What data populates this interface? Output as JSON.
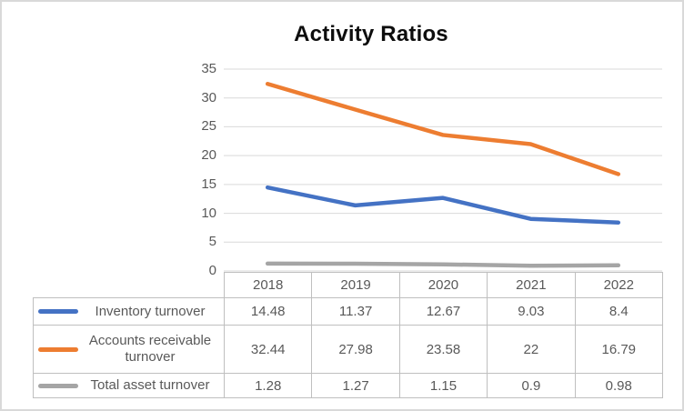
{
  "title": "Activity Ratios",
  "chart_data": {
    "type": "line",
    "title": "Activity Ratios",
    "categories": [
      "2018",
      "2019",
      "2020",
      "2021",
      "2022"
    ],
    "series": [
      {
        "name": "Inventory turnover",
        "color": "#4472C4",
        "values": [
          14.48,
          11.37,
          12.67,
          9.03,
          8.4
        ]
      },
      {
        "name": "Accounts receivable turnover",
        "color": "#ED7D31",
        "values": [
          32.44,
          27.98,
          23.58,
          22,
          16.79
        ]
      },
      {
        "name": "Total asset turnover",
        "color": "#A5A5A5",
        "values": [
          1.28,
          1.27,
          1.15,
          0.9,
          0.98
        ]
      }
    ],
    "yticks": [
      0,
      5,
      10,
      15,
      20,
      25,
      30,
      35
    ],
    "ylim": [
      0,
      35
    ],
    "grid": true,
    "legend_position": "table-left",
    "xlabel": "",
    "ylabel": ""
  },
  "colors": {
    "axis_text": "#595959",
    "gridline": "#d9d9d9",
    "table_border": "#bfbfbf",
    "title_text": "#0d0d0d",
    "frame_border": "#d9d9d9"
  }
}
